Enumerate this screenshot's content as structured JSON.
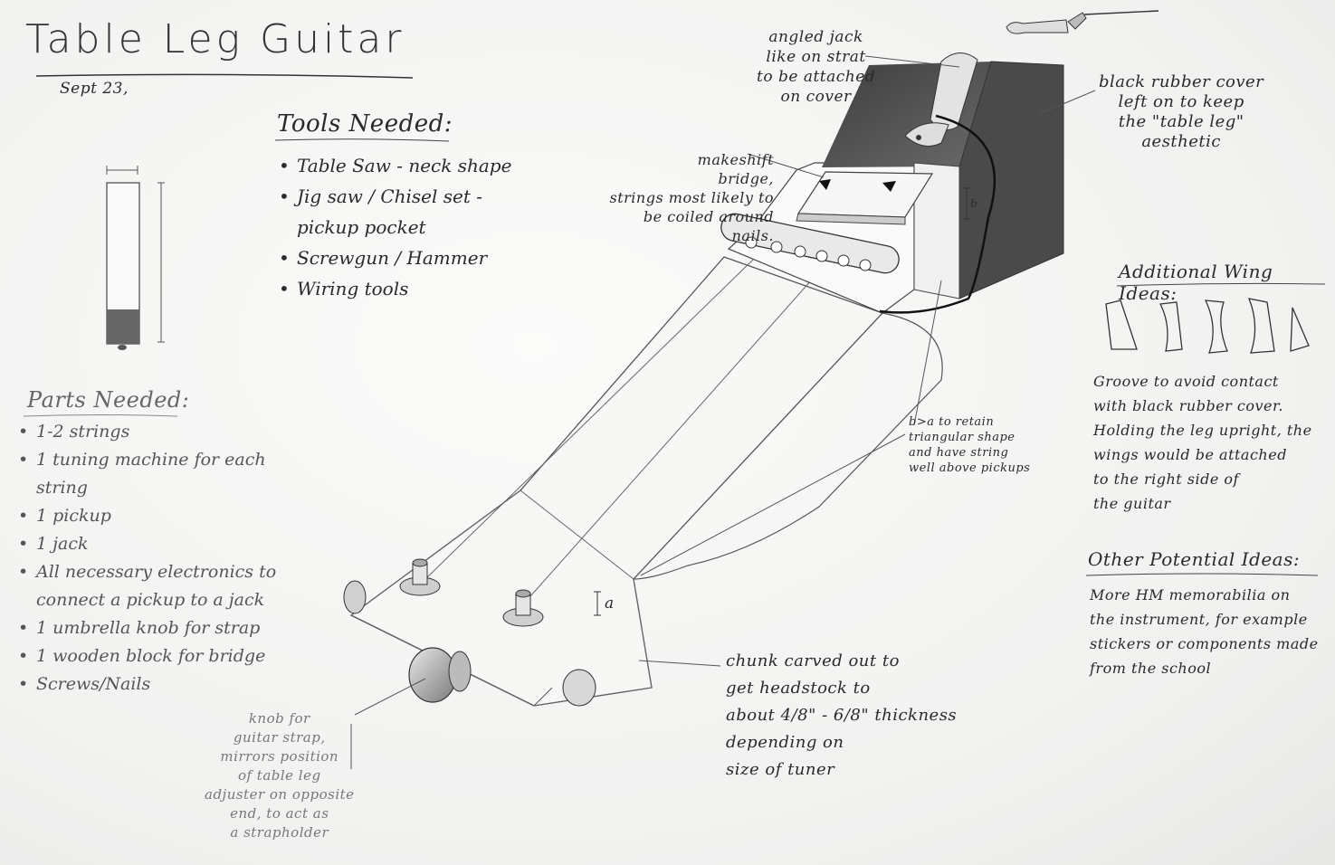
{
  "title": "Table Leg Guitar",
  "date": "Sept 23,",
  "tools": {
    "heading": "Tools Needed:",
    "items": [
      "Table Saw - neck shape",
      "Jig saw / Chisel set - pickup pocket",
      "Screwgun / Hammer",
      "Wiring tools"
    ]
  },
  "parts": {
    "heading": "Parts Needed:",
    "items": [
      "1-2 strings",
      "1 tuning machine for each string",
      "1 pickup",
      "1 jack",
      "All necessary electronics to connect a pickup to a jack",
      "1 umbrella knob for strap",
      "1 wooden block for bridge",
      "Screws/Nails"
    ]
  },
  "annotations": {
    "angled_jack": "angled jack\nlike on strat\nto be attached\non cover",
    "rubber_cover": "black rubber cover\nleft on to keep\nthe \"table leg\"\naesthetic",
    "bridge": "makeshift\nbridge,\nstrings most likely to\nbe coiled around\nnails.",
    "b_gt_a": "b>a to retain\ntriangular shape\nand have string\nwell above pickups",
    "chunk": "chunk carved out to\nget headstock to\nabout 4/8\" - 6/8\" thickness\ndepending on\nsize of tuner",
    "knob": "knob for\nguitar strap,\nmirrors position\nof table leg\nadjuster on opposite\nend, to act as\na strapholder",
    "label_a": "a",
    "label_b": "b"
  },
  "wing_ideas": {
    "heading": "Additional Wing Ideas:",
    "text": "Groove to avoid contact\nwith black rubber cover.\nHolding the leg upright, the\nwings would be attached\nto the right side of\nthe guitar"
  },
  "other_ideas": {
    "heading": "Other Potential Ideas:",
    "text": "More HM memorabilia on\nthe instrument, for example\nstickers or components made\nfrom the school"
  },
  "colors": {
    "paper": "#f4f4f3",
    "pencil": "#2a2a2a",
    "shade": "#4a4a4a"
  }
}
